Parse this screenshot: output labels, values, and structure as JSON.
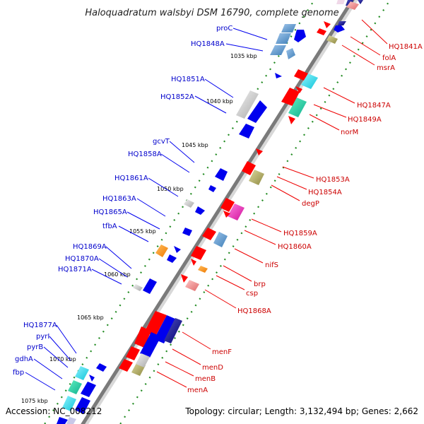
{
  "title": "Haloquadratum walsbyi DSM 16790, complete genome",
  "accession": "Accession: NC_008212",
  "topology": "Topology: circular; Length: 3,132,494 bp; Genes: 2,662",
  "scale_labels": [
    "1035 kbp",
    "1040 kbp",
    "1045 kbp",
    "1050 kbp",
    "1055 kbp",
    "1060 kbp",
    "1065 kbp",
    "1070 kbp",
    "1075 kbp"
  ],
  "left_labels": [
    "proC",
    "HQ1848A",
    "HQ1851A",
    "HQ1852A",
    "gcvT",
    "HQ1858A",
    "HQ1861A",
    "HQ1863A",
    "HQ1865A",
    "tfbA",
    "HQ1869A",
    "HQ1870A",
    "HQ1871A",
    "HQ1877A",
    "pyrI",
    "pyrB",
    "gdhA",
    "fbp"
  ],
  "right_labels": [
    "HQ1841A",
    "folA",
    "msrA",
    "HQ1847A",
    "HQ1849A",
    "norM",
    "HQ1853A",
    "HQ1854A",
    "degP",
    "HQ1859A",
    "HQ1860A",
    "nifS",
    "brp",
    "csp",
    "HQ1868A",
    "menF",
    "menD",
    "menB",
    "menA"
  ],
  "colors": {
    "forward_strand": "#0000ff",
    "reverse_strand": "#ff0000",
    "left_label_color": "#0000cc",
    "right_label_color": "#cc0000",
    "backbone": "#888888",
    "tick_dots": "#228b22"
  }
}
